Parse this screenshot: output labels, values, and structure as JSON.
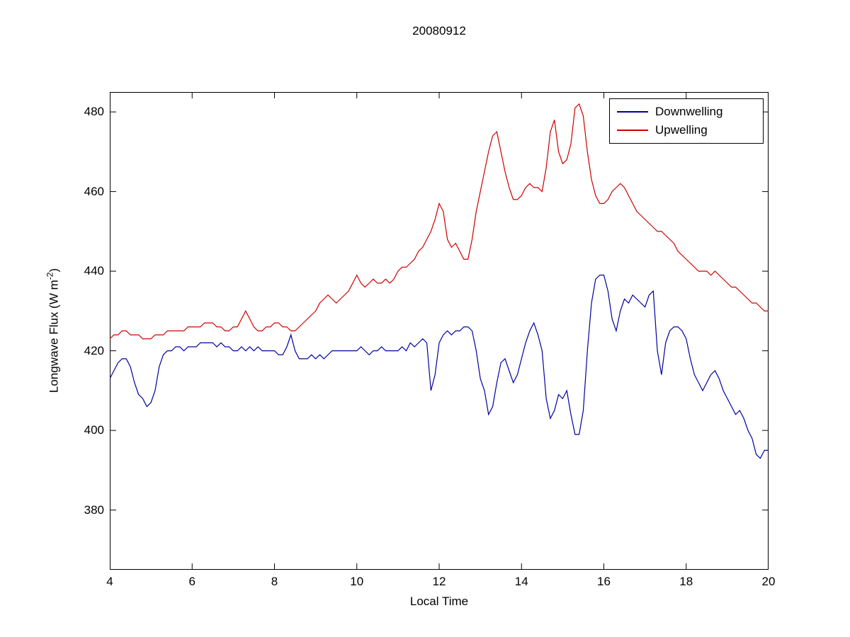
{
  "chart": {
    "title": "20080912",
    "xlabel": "Local Time",
    "ylabel_main": "Longwave Flux (W m",
    "ylabel_sup": "-2",
    "ylabel_close": ")"
  },
  "chart_data": {
    "type": "line",
    "title": "20080912",
    "xlabel": "Local Time",
    "ylabel": "Longwave Flux (W m^-2)",
    "xlim": [
      4,
      20
    ],
    "ylim": [
      365,
      485
    ],
    "x_ticks": [
      4,
      6,
      8,
      10,
      12,
      14,
      16,
      18,
      20
    ],
    "y_ticks": [
      380,
      400,
      420,
      440,
      460,
      480
    ],
    "grid": false,
    "legend_position": "top-right",
    "x_start": 4,
    "x_step": 0.1,
    "series": [
      {
        "name": "Downwelling",
        "color": "#0000A0",
        "values": [
          413,
          415,
          417,
          418,
          418,
          416,
          412,
          409,
          408,
          406,
          407,
          410,
          416,
          419,
          420,
          420,
          421,
          421,
          420,
          421,
          421,
          421,
          422,
          422,
          422,
          422,
          421,
          422,
          421,
          421,
          420,
          420,
          421,
          420,
          421,
          420,
          421,
          420,
          420,
          420,
          420,
          419,
          419,
          421,
          424,
          420,
          418,
          418,
          418,
          419,
          418,
          419,
          418,
          419,
          420,
          420,
          420,
          420,
          420,
          420,
          420,
          421,
          420,
          419,
          420,
          420,
          421,
          420,
          420,
          420,
          420,
          421,
          420,
          422,
          421,
          422,
          423,
          422,
          410,
          414,
          422,
          424,
          425,
          424,
          425,
          425,
          426,
          426,
          425,
          420,
          413,
          410,
          404,
          406,
          412,
          417,
          418,
          415,
          412,
          414,
          418,
          422,
          425,
          427,
          424,
          420,
          408,
          403,
          405,
          409,
          408,
          410,
          404,
          399,
          399,
          405,
          420,
          432,
          438,
          439,
          439,
          435,
          428,
          425,
          430,
          433,
          432,
          434,
          433,
          432,
          431,
          434,
          435,
          420,
          414,
          422,
          425,
          426,
          426,
          425,
          423,
          418,
          414,
          412,
          410,
          412,
          414,
          415,
          413,
          410,
          408,
          406,
          404,
          405,
          403,
          400,
          398,
          394,
          393,
          395,
          395
        ]
      },
      {
        "name": "Upwelling",
        "color": "#CC0000",
        "values": [
          423,
          424,
          424,
          425,
          425,
          424,
          424,
          424,
          423,
          423,
          423,
          424,
          424,
          424,
          425,
          425,
          425,
          425,
          425,
          426,
          426,
          426,
          426,
          427,
          427,
          427,
          426,
          426,
          425,
          425,
          426,
          426,
          428,
          430,
          428,
          426,
          425,
          425,
          426,
          426,
          427,
          427,
          426,
          426,
          425,
          425,
          426,
          427,
          428,
          429,
          430,
          432,
          433,
          434,
          433,
          432,
          433,
          434,
          435,
          437,
          439,
          437,
          436,
          437,
          438,
          437,
          437,
          438,
          437,
          438,
          440,
          441,
          441,
          442,
          443,
          445,
          446,
          448,
          450,
          453,
          457,
          455,
          448,
          446,
          447,
          445,
          443,
          443,
          448,
          455,
          460,
          465,
          470,
          474,
          475,
          470,
          465,
          461,
          458,
          458,
          459,
          461,
          462,
          461,
          461,
          460,
          466,
          475,
          478,
          470,
          467,
          468,
          472,
          481,
          482,
          479,
          470,
          463,
          459,
          457,
          457,
          458,
          460,
          461,
          462,
          461,
          459,
          457,
          455,
          454,
          453,
          452,
          451,
          450,
          450,
          449,
          448,
          447,
          445,
          444,
          443,
          442,
          441,
          440,
          440,
          440,
          439,
          440,
          439,
          438,
          437,
          436,
          436,
          435,
          434,
          433,
          432,
          432,
          431,
          430,
          430
        ]
      }
    ]
  }
}
